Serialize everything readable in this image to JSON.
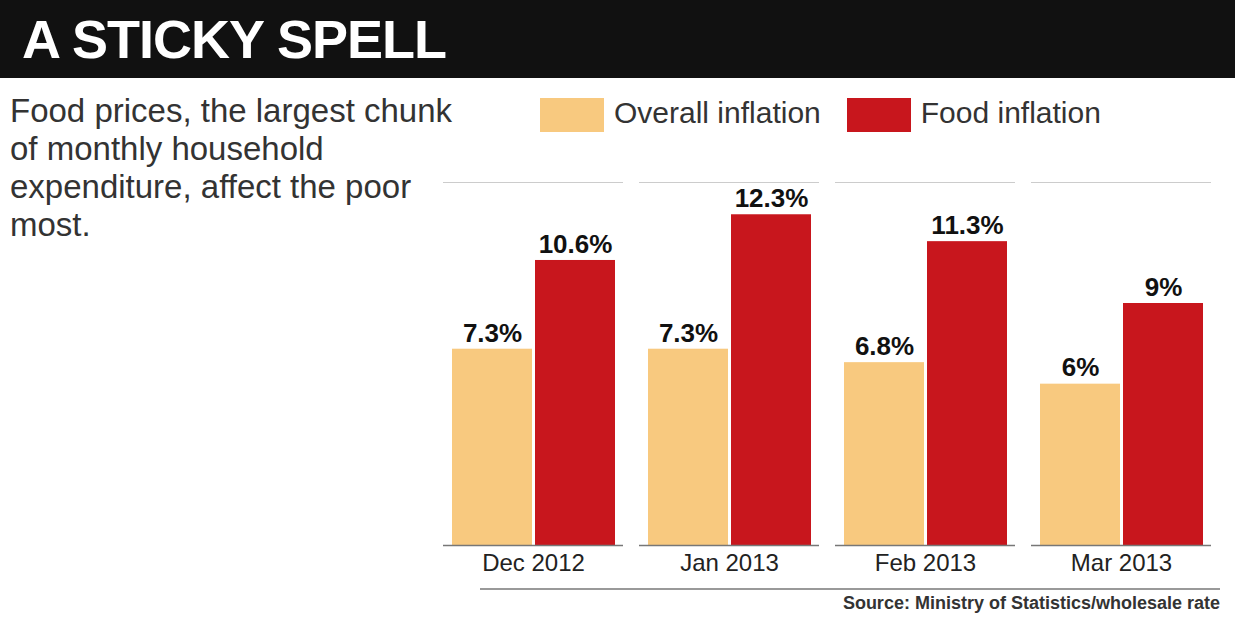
{
  "chart_data": {
    "type": "bar",
    "title": "A STICKY SPELL",
    "subtitle": "Food prices, the largest chunk of monthly household expenditure, affect the poor most.",
    "caption": "Source: Ministry of Statistics/wholesale rate",
    "categories": [
      "Dec 2012",
      "Jan 2013",
      "Feb 2013",
      "Mar 2013"
    ],
    "series": [
      {
        "name": "Overall inflation",
        "color": "#f8c97f",
        "values": [
          7.3,
          7.3,
          6.8,
          6
        ],
        "value_labels": [
          "7.3%",
          "7.3%",
          "6.8%",
          "6%"
        ]
      },
      {
        "name": "Food inflation",
        "color": "#c8161d",
        "values": [
          10.6,
          12.3,
          11.3,
          9
        ],
        "value_labels": [
          "10.6%",
          "12.3%",
          "11.3%",
          "9%"
        ]
      }
    ],
    "ylim": [
      0,
      13.5
    ],
    "data_labels": true,
    "tick_labels": "x",
    "legend": "top"
  }
}
